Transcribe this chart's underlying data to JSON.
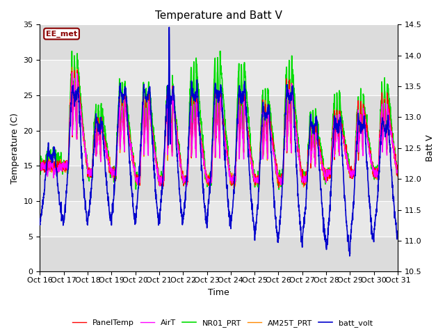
{
  "title": "Temperature and Batt V",
  "xlabel": "Time",
  "ylabel_left": "Temperature (C)",
  "ylabel_right": "Batt V",
  "annotation": "EE_met",
  "xlim": [
    0,
    15
  ],
  "ylim_left": [
    0,
    35
  ],
  "ylim_right": [
    10.5,
    14.5
  ],
  "xtick_labels": [
    "Oct 16",
    "Oct 17",
    "Oct 18",
    "Oct 19",
    "Oct 20",
    "Oct 21",
    "Oct 22",
    "Oct 23",
    "Oct 24",
    "Oct 25",
    "Oct 26",
    "Oct 27",
    "Oct 28",
    "Oct 29",
    "Oct 30",
    "Oct 31"
  ],
  "yticks_left": [
    0,
    5,
    10,
    15,
    20,
    25,
    30,
    35
  ],
  "yticks_right": [
    10.5,
    11.0,
    11.5,
    12.0,
    12.5,
    13.0,
    13.5,
    14.0,
    14.5
  ],
  "grid_color": "#d0d0d0",
  "bg_color_dark": "#d8d8d8",
  "bg_color_light": "#e8e8e8",
  "line_colors": {
    "PanelTemp": "#ff0000",
    "AirT": "#ff00ff",
    "NR01_PRT": "#00dd00",
    "AM25T_PRT": "#ff8800",
    "batt_volt": "#0000cc"
  },
  "line_widths": {
    "PanelTemp": 1.0,
    "AirT": 1.0,
    "NR01_PRT": 1.2,
    "AM25T_PRT": 1.0,
    "batt_volt": 1.2
  },
  "figsize": [
    6.4,
    4.8
  ],
  "dpi": 100
}
